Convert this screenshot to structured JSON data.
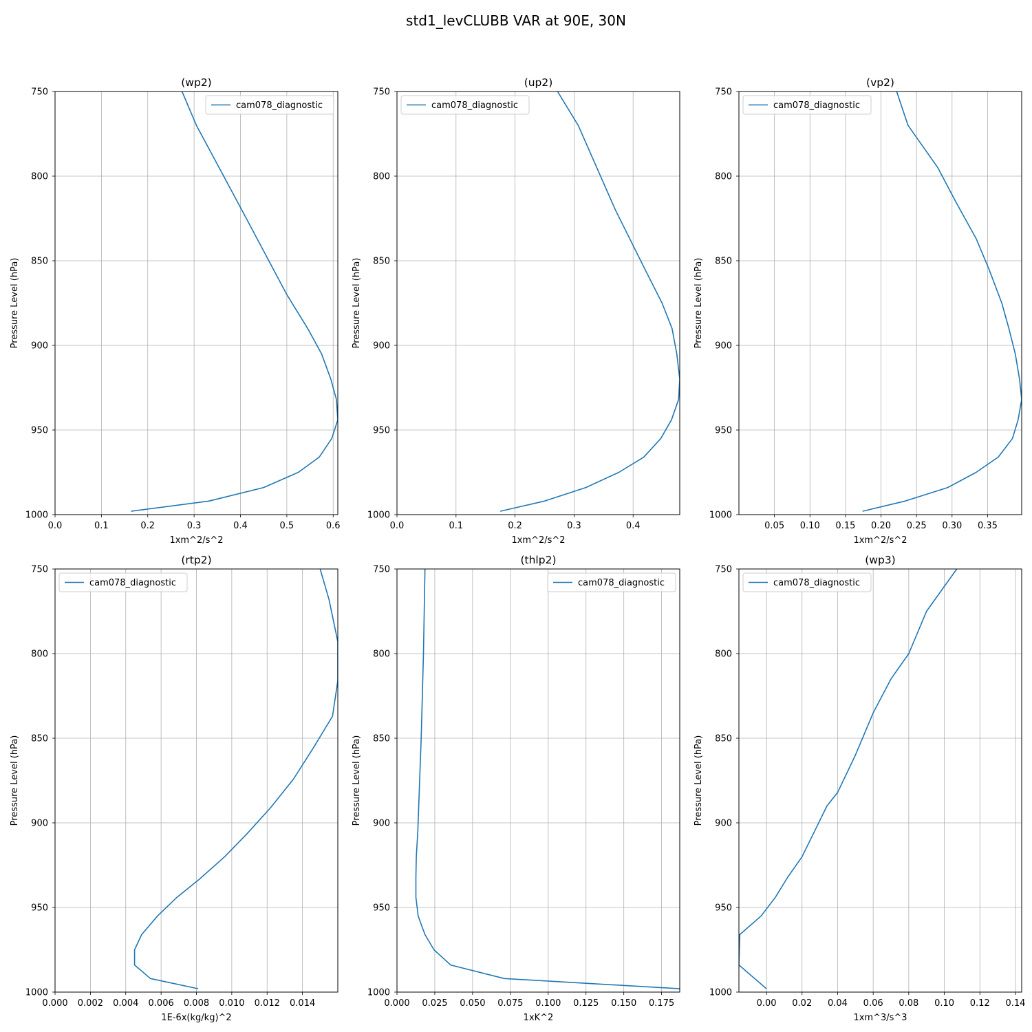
{
  "figure": {
    "title": "std1_levCLUBB VAR at 90E, 30N"
  },
  "chart_data": [
    {
      "type": "line",
      "title": "(wp2)",
      "xlabel": "1xm^2/s^2",
      "ylabel": "Pressure Level (hPa)",
      "xlim": [
        0,
        0.61
      ],
      "ylim": [
        1000,
        750
      ],
      "invert_y": true,
      "xticks": [
        0.0,
        0.1,
        0.2,
        0.3,
        0.4,
        0.5,
        0.6
      ],
      "xtick_labels": [
        "0.0",
        "0.1",
        "0.2",
        "0.3",
        "0.4",
        "0.5",
        "0.6"
      ],
      "yticks": [
        750,
        800,
        850,
        900,
        950,
        1000
      ],
      "ytick_labels": [
        "750",
        "800",
        "850",
        "900",
        "950",
        "1000"
      ],
      "grid": true,
      "legend": "upper right",
      "series": [
        {
          "name": "cam078_diagnostic",
          "color": "#1f77b4",
          "x": [
            0.274,
            0.305,
            0.403,
            0.5,
            0.545,
            0.575,
            0.595,
            0.607,
            0.61,
            0.597,
            0.57,
            0.525,
            0.45,
            0.332,
            0.164
          ],
          "y": [
            750,
            770,
            820,
            870,
            890,
            905,
            920,
            932,
            944,
            955,
            966,
            975,
            984,
            992,
            998
          ]
        }
      ]
    },
    {
      "type": "line",
      "title": "(up2)",
      "xlabel": "1xm^2/s^2",
      "ylabel": "Pressure Level (hPa)",
      "xlim": [
        0,
        0.479
      ],
      "ylim": [
        1000,
        750
      ],
      "invert_y": true,
      "xticks": [
        0.0,
        0.1,
        0.2,
        0.3,
        0.4
      ],
      "xtick_labels": [
        "0.0",
        "0.1",
        "0.2",
        "0.3",
        "0.4"
      ],
      "yticks": [
        750,
        800,
        850,
        900,
        950,
        1000
      ],
      "ytick_labels": [
        "750",
        "800",
        "850",
        "900",
        "950",
        "1000"
      ],
      "grid": true,
      "legend": "upper left",
      "series": [
        {
          "name": "cam078_diagnostic",
          "color": "#1f77b4",
          "x": [
            0.272,
            0.307,
            0.37,
            0.42,
            0.449,
            0.466,
            0.474,
            0.479,
            0.477,
            0.465,
            0.447,
            0.418,
            0.376,
            0.32,
            0.25,
            0.175
          ],
          "y": [
            750,
            770,
            820,
            855,
            875,
            890,
            905,
            920,
            932,
            944,
            955,
            966,
            975,
            984,
            992,
            998
          ]
        }
      ]
    },
    {
      "type": "line",
      "title": "(vp2)",
      "xlabel": "1xm^2/s^2",
      "ylabel": "Pressure Level (hPa)",
      "xlim": [
        0.0,
        0.398
      ],
      "ylim": [
        1000,
        750
      ],
      "invert_y": true,
      "xticks": [
        0.05,
        0.1,
        0.15,
        0.2,
        0.25,
        0.3,
        0.35
      ],
      "xtick_labels": [
        "0.05",
        "0.10",
        "0.15",
        "0.20",
        "0.25",
        "0.30",
        "0.35"
      ],
      "yticks": [
        750,
        800,
        850,
        900,
        950,
        1000
      ],
      "ytick_labels": [
        "750",
        "800",
        "850",
        "900",
        "950",
        "1000"
      ],
      "grid": true,
      "legend": "upper left",
      "series": [
        {
          "name": "cam078_diagnostic",
          "color": "#1f77b4",
          "x": [
            0.222,
            0.238,
            0.28,
            0.305,
            0.334,
            0.352,
            0.37,
            0.38,
            0.389,
            0.395,
            0.398,
            0.393,
            0.385,
            0.365,
            0.334,
            0.294,
            0.234,
            0.174
          ],
          "y": [
            750,
            770,
            795,
            815,
            837,
            855,
            875,
            890,
            905,
            920,
            932,
            944,
            955,
            966,
            975,
            984,
            992,
            998
          ]
        }
      ]
    },
    {
      "type": "line",
      "title": "(rtp2)",
      "xlabel": "1E-6x(kg/kg)^2",
      "ylabel": "Pressure Level (hPa)",
      "xlim": [
        0,
        0.016
      ],
      "ylim": [
        1000,
        750
      ],
      "invert_y": true,
      "xticks": [
        0.0,
        0.002,
        0.004,
        0.006,
        0.008,
        0.01,
        0.012,
        0.014
      ],
      "xtick_labels": [
        "0.000",
        "0.002",
        "0.004",
        "0.006",
        "0.008",
        "0.010",
        "0.012",
        "0.014"
      ],
      "yticks": [
        750,
        800,
        850,
        900,
        950,
        1000
      ],
      "ytick_labels": [
        "750",
        "800",
        "850",
        "900",
        "950",
        "1000"
      ],
      "grid": true,
      "legend": "upper left",
      "series": [
        {
          "name": "cam078_diagnostic",
          "color": "#1f77b4",
          "x": [
            0.015,
            0.0155,
            0.016,
            0.016,
            0.0157,
            0.0146,
            0.0135,
            0.0122,
            0.0109,
            0.0096,
            0.0082,
            0.0069,
            0.0058,
            0.0049,
            0.0045,
            0.0045,
            0.0054,
            0.0081
          ],
          "y": [
            750,
            768,
            793,
            816,
            837,
            856,
            874,
            891,
            906,
            920,
            933,
            944,
            955,
            966,
            975,
            984,
            992,
            998
          ]
        }
      ]
    },
    {
      "type": "line",
      "title": "(thlp2)",
      "xlabel": "1xK^2",
      "ylabel": "Pressure Level (hPa)",
      "xlim": [
        0,
        0.187
      ],
      "ylim": [
        1000,
        750
      ],
      "invert_y": true,
      "xticks": [
        0.0,
        0.025,
        0.05,
        0.075,
        0.1,
        0.125,
        0.15,
        0.175
      ],
      "xtick_labels": [
        "0.000",
        "0.025",
        "0.050",
        "0.075",
        "0.100",
        "0.125",
        "0.150",
        "0.175"
      ],
      "yticks": [
        750,
        800,
        850,
        900,
        950,
        1000
      ],
      "ytick_labels": [
        "750",
        "800",
        "850",
        "900",
        "950",
        "1000"
      ],
      "grid": true,
      "legend": "upper right",
      "series": [
        {
          "name": "cam078_diagnostic",
          "color": "#1f77b4",
          "x": [
            0.0185,
            0.0175,
            0.016,
            0.0148,
            0.0138,
            0.0128,
            0.0125,
            0.0125,
            0.014,
            0.016,
            0.0185,
            0.0245,
            0.0355,
            0.071,
            0.187
          ],
          "y": [
            750,
            800,
            850,
            880,
            905,
            920,
            932,
            944,
            955,
            960,
            966,
            975,
            984,
            992,
            998
          ]
        }
      ]
    },
    {
      "type": "line",
      "title": "(wp3)",
      "xlabel": "1xm^3/s^3",
      "ylabel": "Pressure Level (hPa)",
      "xlim": [
        -0.0155,
        0.1435
      ],
      "ylim": [
        1000,
        750
      ],
      "invert_y": true,
      "xticks": [
        0.0,
        0.02,
        0.04,
        0.06,
        0.08,
        0.1,
        0.12,
        0.14
      ],
      "xtick_labels": [
        "0.00",
        "0.02",
        "0.04",
        "0.06",
        "0.08",
        "0.10",
        "0.12",
        "0.14"
      ],
      "yticks": [
        750,
        800,
        850,
        900,
        950,
        1000
      ],
      "ytick_labels": [
        "750",
        "800",
        "850",
        "900",
        "950",
        "1000"
      ],
      "grid": true,
      "legend": "upper left",
      "series": [
        {
          "name": "cam078_diagnostic",
          "color": "#1f77b4",
          "x": [
            0.107,
            0.09,
            0.08,
            0.07,
            0.06,
            0.05,
            0.04,
            0.034,
            0.027,
            0.02,
            0.012,
            0.005,
            -0.003,
            -0.015,
            -0.0155,
            0.0
          ],
          "y": [
            750,
            775,
            800,
            815,
            835,
            860,
            882,
            890,
            905,
            920,
            932,
            944,
            955,
            966,
            984,
            998
          ]
        }
      ]
    }
  ]
}
